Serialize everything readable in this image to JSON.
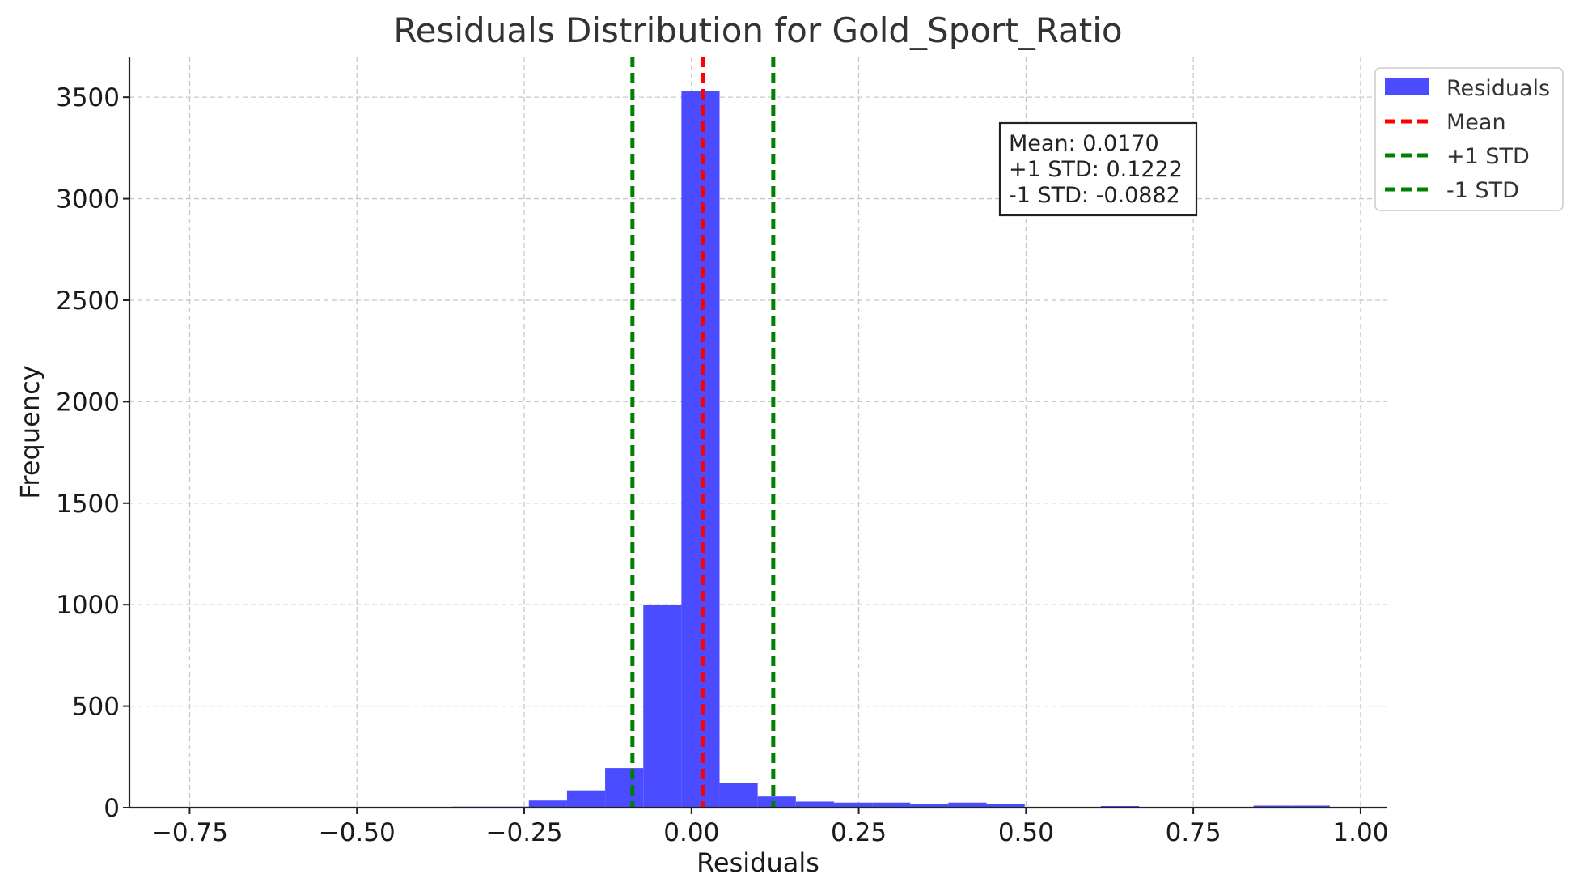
{
  "chart_data": {
    "type": "bar",
    "title": "Residuals Distribution for Gold_Sport_Ratio",
    "xlabel": "Residuals",
    "ylabel": "Frequency",
    "xlim": [
      -0.84,
      1.04
    ],
    "ylim": [
      0,
      3700
    ],
    "x_ticks": [
      -0.75,
      -0.5,
      -0.25,
      0.0,
      0.25,
      0.5,
      0.75,
      1.0
    ],
    "x_tick_labels": [
      "−0.75",
      "−0.50",
      "−0.25",
      "0.00",
      "0.25",
      "0.50",
      "0.75",
      "1.00"
    ],
    "y_ticks": [
      0,
      500,
      1000,
      1500,
      2000,
      2500,
      3000,
      3500
    ],
    "y_tick_labels": [
      "0",
      "500",
      "1000",
      "1500",
      "2000",
      "2500",
      "3000",
      "3500"
    ],
    "grid": true,
    "bar_color": "#4b4bff",
    "bin_width": 0.057,
    "bin_starts": [
      -0.357,
      -0.3,
      -0.243,
      -0.186,
      -0.129,
      -0.072,
      -0.015,
      0.042,
      0.099,
      0.156,
      0.213,
      0.27,
      0.327,
      0.384,
      0.441,
      0.498,
      0.555,
      0.612,
      0.669,
      0.726,
      0.783,
      0.84,
      0.897
    ],
    "values": [
      5,
      5,
      35,
      85,
      195,
      1000,
      3530,
      120,
      55,
      30,
      25,
      25,
      20,
      25,
      18,
      3,
      3,
      8,
      3,
      2,
      2,
      10,
      10
    ],
    "series": [
      {
        "name": "Residuals",
        "color": "#4b4bff"
      }
    ],
    "reference_lines": [
      {
        "name": "Mean",
        "x": 0.017,
        "color": "#ff0000"
      },
      {
        "name": "+1 STD",
        "x": 0.1222,
        "color": "#008000"
      },
      {
        "name": "-1 STD",
        "x": -0.0882,
        "color": "#008000"
      }
    ],
    "stats_box": [
      "Mean: 0.0170",
      "+1 STD: 0.1222",
      "-1 STD: -0.0882"
    ],
    "legend_position": "top-right"
  }
}
